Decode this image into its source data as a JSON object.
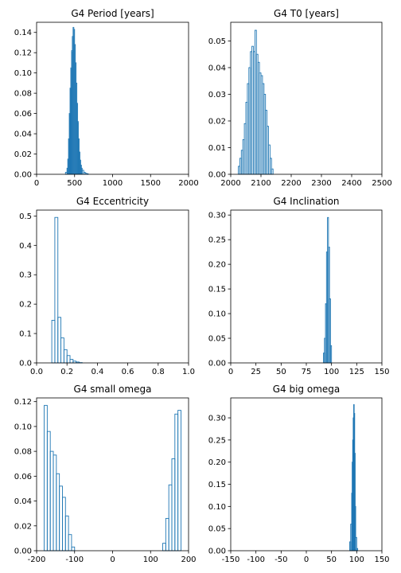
{
  "colors": {
    "series": "#1f77b4",
    "axis": "#000000",
    "background": "#ffffff"
  },
  "chart_data": [
    {
      "type": "histogram",
      "title": "G4 Period [years]",
      "xlim": [
        0,
        2000
      ],
      "ylim": [
        0,
        0.15
      ],
      "xticks": [
        0,
        500,
        1000,
        1500,
        2000
      ],
      "yticks": [
        0.0,
        0.02,
        0.04,
        0.06,
        0.08,
        0.1,
        0.12,
        0.14
      ],
      "yticklabels": [
        "0.00",
        "0.02",
        "0.04",
        "0.06",
        "0.08",
        "0.10",
        "0.12",
        "0.14"
      ],
      "bin_edges": [
        380,
        400,
        410,
        420,
        430,
        440,
        450,
        460,
        470,
        480,
        490,
        500,
        510,
        520,
        530,
        540,
        550,
        560,
        570,
        580,
        590,
        600,
        620,
        640,
        660,
        680
      ],
      "values": [
        0.002,
        0.006,
        0.015,
        0.035,
        0.06,
        0.085,
        0.105,
        0.122,
        0.136,
        0.145,
        0.143,
        0.128,
        0.11,
        0.09,
        0.07,
        0.052,
        0.035,
        0.022,
        0.014,
        0.009,
        0.006,
        0.004,
        0.002,
        0.001,
        0.0005
      ]
    },
    {
      "type": "histogram",
      "title": "G4 T0 [years]",
      "xlim": [
        2000,
        2500
      ],
      "ylim": [
        0,
        0.057
      ],
      "xticks": [
        2000,
        2100,
        2200,
        2300,
        2400,
        2500
      ],
      "yticks": [
        0.0,
        0.01,
        0.02,
        0.03,
        0.04,
        0.05
      ],
      "yticklabels": [
        "0.00",
        "0.01",
        "0.02",
        "0.03",
        "0.04",
        "0.05"
      ],
      "bin_edges": [
        2025,
        2030,
        2035,
        2040,
        2045,
        2050,
        2055,
        2060,
        2065,
        2070,
        2075,
        2080,
        2085,
        2090,
        2095,
        2100,
        2105,
        2110,
        2115,
        2120,
        2125,
        2130,
        2135,
        2140
      ],
      "values": [
        0.003,
        0.006,
        0.009,
        0.013,
        0.019,
        0.027,
        0.034,
        0.04,
        0.046,
        0.048,
        0.046,
        0.054,
        0.045,
        0.042,
        0.038,
        0.037,
        0.034,
        0.03,
        0.024,
        0.018,
        0.011,
        0.006,
        0.002
      ]
    },
    {
      "type": "histogram",
      "title": "G4 Eccentricity",
      "xlim": [
        0,
        1
      ],
      "ylim": [
        0,
        0.52
      ],
      "xticks": [
        0.0,
        0.2,
        0.4,
        0.6,
        0.8,
        1.0
      ],
      "xticklabels": [
        "0.0",
        "0.2",
        "0.4",
        "0.6",
        "0.8",
        "1.0"
      ],
      "yticks": [
        0.0,
        0.1,
        0.2,
        0.3,
        0.4,
        0.5
      ],
      "yticklabels": [
        "0.0",
        "0.1",
        "0.2",
        "0.3",
        "0.4",
        "0.5"
      ],
      "bin_edges": [
        0.1,
        0.12,
        0.14,
        0.16,
        0.18,
        0.2,
        0.22,
        0.24,
        0.26,
        0.28,
        0.3
      ],
      "values": [
        0.145,
        0.495,
        0.155,
        0.085,
        0.045,
        0.025,
        0.012,
        0.006,
        0.003,
        0.001
      ]
    },
    {
      "type": "histogram",
      "title": "G4 Inclination",
      "xlim": [
        0,
        150
      ],
      "ylim": [
        0,
        0.31
      ],
      "xticks": [
        0,
        25,
        50,
        75,
        100,
        125,
        150
      ],
      "yticks": [
        0.0,
        0.05,
        0.1,
        0.15,
        0.2,
        0.25,
        0.3
      ],
      "yticklabels": [
        "0.00",
        "0.05",
        "0.10",
        "0.15",
        "0.20",
        "0.25",
        "0.30"
      ],
      "bin_edges": [
        92,
        93,
        94,
        95,
        96,
        97,
        98,
        99,
        100
      ],
      "values": [
        0.02,
        0.05,
        0.12,
        0.225,
        0.295,
        0.235,
        0.13,
        0.035
      ]
    },
    {
      "type": "histogram",
      "title": "G4 small omega",
      "xlim": [
        -200,
        200
      ],
      "ylim": [
        0,
        0.123
      ],
      "xticks": [
        -200,
        -100,
        0,
        100,
        200
      ],
      "yticks": [
        0.0,
        0.02,
        0.04,
        0.06,
        0.08,
        0.1,
        0.12
      ],
      "yticklabels": [
        "0.00",
        "0.02",
        "0.04",
        "0.06",
        "0.08",
        "0.10",
        "0.12"
      ],
      "bin_edges": [
        -180,
        -172,
        -164,
        -156,
        -148,
        -140,
        -132,
        -124,
        -116,
        -108,
        -100,
        132,
        140,
        148,
        156,
        164,
        172,
        180
      ],
      "values": [
        0.117,
        0.096,
        0.08,
        0.077,
        0.062,
        0.052,
        0.043,
        0.028,
        0.013,
        0.003,
        0,
        0.006,
        0.026,
        0.053,
        0.074,
        0.11,
        0.113
      ]
    },
    {
      "type": "histogram",
      "title": "G4 big omega",
      "xlim": [
        -150,
        150
      ],
      "ylim": [
        0,
        0.345
      ],
      "xticks": [
        -150,
        -100,
        -50,
        0,
        50,
        100,
        150
      ],
      "yticks": [
        0.0,
        0.05,
        0.1,
        0.15,
        0.2,
        0.25,
        0.3
      ],
      "yticklabels": [
        "0.00",
        "0.05",
        "0.10",
        "0.15",
        "0.20",
        "0.25",
        "0.30"
      ],
      "bin_edges": [
        86,
        88,
        90,
        91,
        92,
        93,
        94,
        95,
        96,
        97,
        98,
        100,
        102
      ],
      "values": [
        0.02,
        0.06,
        0.13,
        0.2,
        0.25,
        0.3,
        0.33,
        0.31,
        0.22,
        0.1,
        0.03,
        0.005
      ]
    }
  ]
}
